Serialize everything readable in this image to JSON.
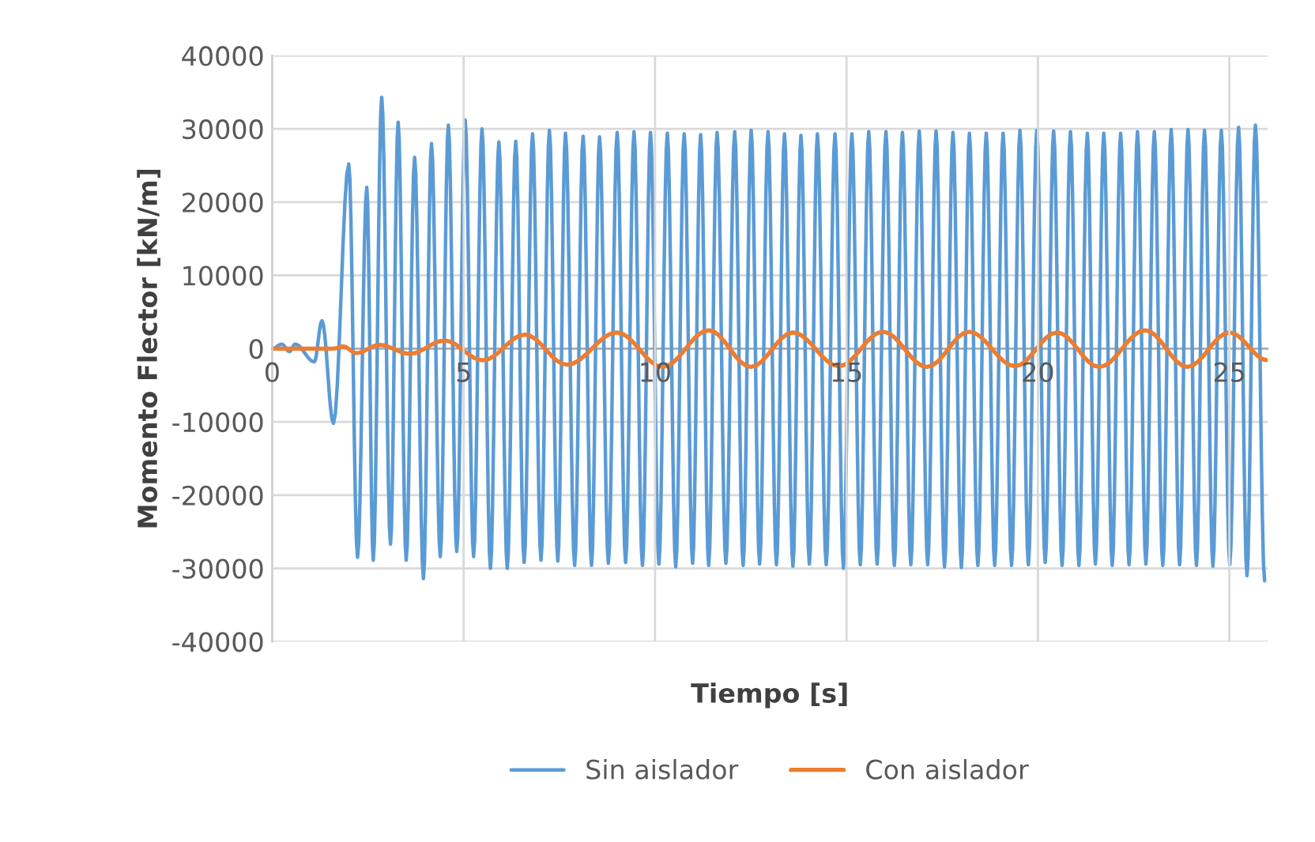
{
  "chart_data": {
    "type": "line",
    "xlabel": "Tiempo [s]",
    "ylabel": "Momento Flector [kN/m]",
    "xlim": [
      0,
      26
    ],
    "xticks": [
      0,
      5,
      10,
      15,
      20,
      25
    ],
    "ylim": [
      -40000,
      40000
    ],
    "yticks": [
      -40000,
      -30000,
      -20000,
      -10000,
      0,
      10000,
      20000,
      30000,
      40000
    ],
    "grid": true,
    "legend": "bottom",
    "line_style": "solid",
    "marker": "none",
    "series": [
      {
        "name": "Sin aislador",
        "color": "#5b9bd5",
        "x": [
          0,
          0.25,
          0.45,
          0.6,
          1.1,
          1.3,
          1.6,
          2.0,
          2.23,
          2.47,
          2.64,
          2.86,
          3.09,
          3.29,
          3.5,
          3.72,
          3.95,
          4.16,
          4.39,
          4.6,
          4.82,
          5.04,
          5.26,
          5.48,
          5.7,
          5.92,
          6.14,
          6.36,
          6.58,
          6.8,
          7.02,
          7.24,
          7.46,
          7.66,
          7.9,
          8.12,
          8.34,
          8.55,
          8.78,
          9.01,
          9.23,
          9.45,
          9.67,
          9.88,
          10.1,
          10.32,
          10.54,
          10.76,
          10.98,
          11.19,
          11.4,
          11.62,
          11.85,
          12.08,
          12.3,
          12.51,
          12.73,
          12.95,
          13.17,
          13.38,
          13.6,
          13.81,
          14.03,
          14.24,
          14.47,
          14.7,
          14.92,
          15.14,
          15.36,
          15.58,
          15.8,
          16.03,
          16.25,
          16.46,
          16.68,
          16.9,
          17.12,
          17.34,
          17.56,
          17.78,
          18.0,
          18.21,
          18.43,
          18.65,
          18.87,
          19.09,
          19.31,
          19.53,
          19.75,
          19.97,
          20.19,
          20.41,
          20.63,
          20.85,
          21.07,
          21.29,
          21.5,
          21.72,
          21.94,
          22.16,
          22.38,
          22.6,
          22.82,
          23.04,
          23.26,
          23.48,
          23.7,
          23.92,
          24.14,
          24.35,
          24.57,
          24.79,
          25.01,
          25.24,
          25.46,
          25.68,
          25.92
        ],
        "values": [
          0,
          600,
          -400,
          600,
          -1800,
          3800,
          -10200,
          25200,
          -28500,
          22000,
          -28900,
          34300,
          -26700,
          30900,
          -28900,
          26100,
          -31400,
          28000,
          -28400,
          30500,
          -27700,
          31200,
          -28400,
          30000,
          -30000,
          28200,
          -30000,
          28300,
          -29200,
          29300,
          -28900,
          29800,
          -29000,
          29400,
          -29600,
          29000,
          -29600,
          28900,
          -29300,
          29500,
          -29200,
          29600,
          -29600,
          29500,
          -29400,
          29400,
          -29800,
          29300,
          -29300,
          29200,
          -29600,
          29500,
          -29300,
          29600,
          -29600,
          29800,
          -29400,
          29600,
          -29500,
          29300,
          -29700,
          29100,
          -29400,
          29300,
          -29500,
          29300,
          -30000,
          29300,
          -29500,
          29600,
          -29400,
          29600,
          -29600,
          29500,
          -29500,
          29700,
          -29500,
          29700,
          -29800,
          29500,
          -29900,
          29400,
          -29600,
          29400,
          -29600,
          29400,
          -29600,
          29800,
          -29500,
          29800,
          -29200,
          29700,
          -29600,
          29600,
          -29600,
          29400,
          -29400,
          29400,
          -29600,
          29400,
          -29500,
          29600,
          -29400,
          29600,
          -29600,
          29900,
          -29500,
          29900,
          -29600,
          29800,
          -29700,
          29800,
          -29500,
          30200,
          -31000,
          30500,
          -31700
        ]
      },
      {
        "name": "Con aislador",
        "color": "#ed7d31",
        "x": [
          0,
          1.6,
          1.85,
          2.2,
          2.8,
          3.6,
          4.5,
          5.5,
          6.6,
          7.7,
          9.0,
          10.2,
          11.4,
          12.5,
          13.6,
          14.8,
          15.95,
          17.1,
          18.2,
          19.4,
          20.5,
          21.6,
          22.8,
          23.9,
          25.0,
          26.0
        ],
        "values": [
          0,
          0,
          300,
          -600,
          500,
          -700,
          1100,
          -1600,
          1900,
          -2200,
          2200,
          -2500,
          2500,
          -2500,
          2200,
          -2400,
          2300,
          -2500,
          2300,
          -2400,
          2200,
          -2500,
          2500,
          -2500,
          2200,
          -1600
        ]
      }
    ]
  }
}
